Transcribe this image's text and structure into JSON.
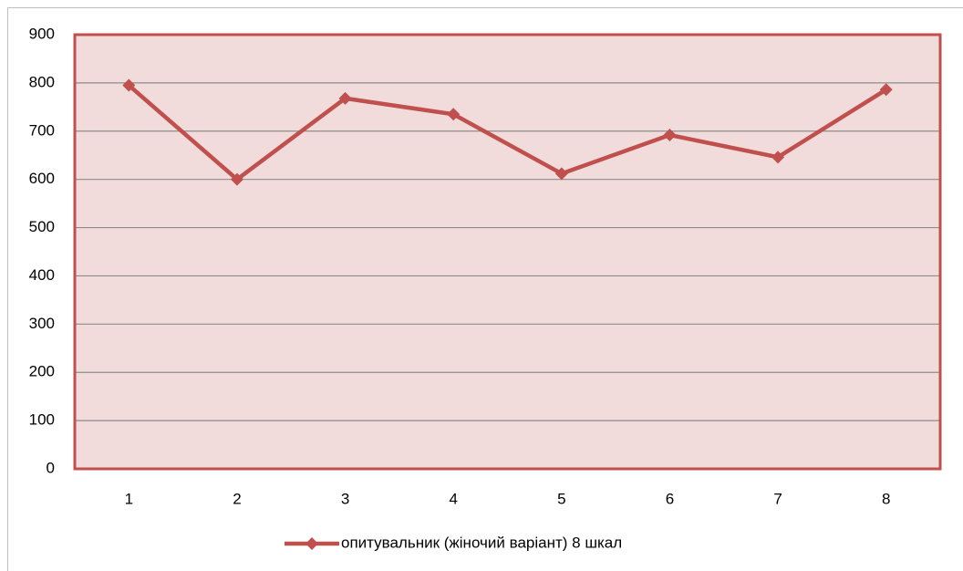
{
  "chart_data": {
    "type": "line",
    "categories": [
      "1",
      "2",
      "3",
      "4",
      "5",
      "6",
      "7",
      "8"
    ],
    "series": [
      {
        "name": "опитувальник (жіночий варіант) 8 шкал",
        "color": "#c0504d",
        "values": [
          795,
          600,
          768,
          735,
          612,
          692,
          646,
          786
        ]
      }
    ],
    "ylim": [
      0,
      900
    ],
    "yticks": [
      0,
      100,
      200,
      300,
      400,
      500,
      600,
      700,
      800,
      900
    ],
    "grid": true,
    "legend": "bottom",
    "plot_background": "#f2dcdb",
    "plot_border": "#c0504d"
  }
}
